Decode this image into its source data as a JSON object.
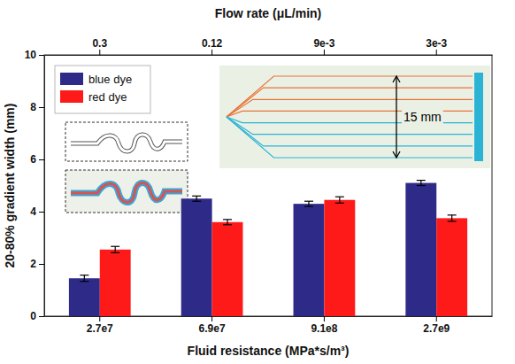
{
  "chart_data": {
    "type": "bar",
    "x_label": "Fluid resistance (MPa*s/m³)",
    "x2_label": "Flow rate (μL/min)",
    "y_label": "20-80% gradient width (mm)",
    "categories": [
      "2.7e7",
      "6.9e7",
      "9.1e8",
      "2.7e9"
    ],
    "x2_categories": [
      "0.3",
      "0.12",
      "9e-3",
      "3e-3"
    ],
    "series": [
      {
        "name": "blue dye",
        "color": "#2d2a88",
        "values": [
          1.45,
          4.5,
          4.3,
          5.1
        ],
        "errors": [
          0.12,
          0.1,
          0.1,
          0.1
        ]
      },
      {
        "name": "red dye",
        "color": "#ff1a1a",
        "values": [
          2.55,
          3.6,
          4.45,
          3.75
        ],
        "errors": [
          0.12,
          0.1,
          0.12,
          0.12
        ]
      }
    ],
    "ylim": [
      0,
      10
    ],
    "yticks": [
      0,
      2,
      4,
      6,
      8,
      10
    ],
    "legend": "upper left",
    "grid": false,
    "annotations": [
      "15 mm"
    ]
  }
}
